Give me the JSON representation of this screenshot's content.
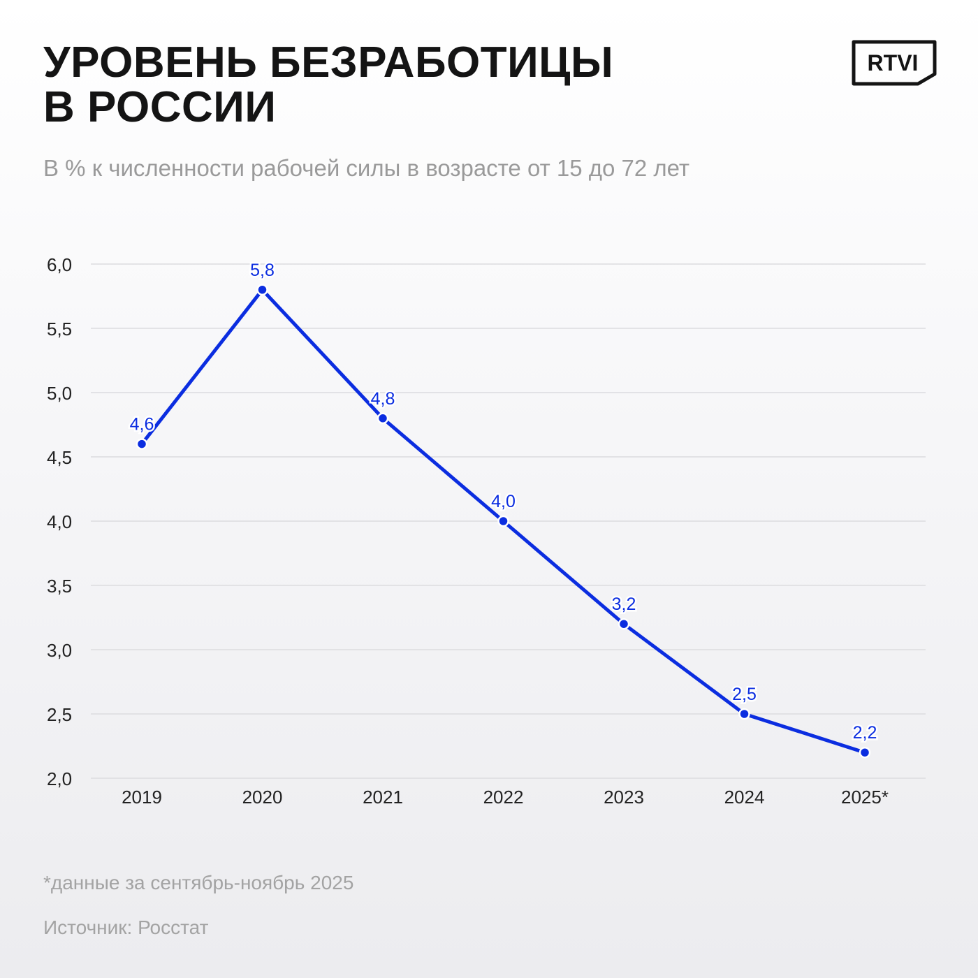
{
  "title": {
    "line1": "УРОВЕНЬ БЕЗРАБОТИЦЫ",
    "line2": "В РОССИИ"
  },
  "subtitle": "В % к численности рабочей силы в возрасте от 15 до 72 лет",
  "logo_text": "RTVI",
  "footnote": "*данные за сентябрь-ноябрь 2025",
  "source": "Источник: Росстат",
  "colors": {
    "line": "#0b2de0",
    "title": "#141414",
    "muted": "#9a9a9a",
    "grid": "#dcdcdf"
  },
  "chart_data": {
    "type": "line",
    "categories": [
      "2019",
      "2020",
      "2021",
      "2022",
      "2023",
      "2024",
      "2025*"
    ],
    "series": [
      {
        "values": [
          4.6,
          5.8,
          4.8,
          4.0,
          3.2,
          2.5,
          2.2
        ],
        "labels": [
          "4,6",
          "5,8",
          "4,8",
          "4,0",
          "3,2",
          "2,5",
          "2,2"
        ]
      }
    ],
    "ylim": [
      2.0,
      6.0
    ],
    "yticks": [
      2.0,
      2.5,
      3.0,
      3.5,
      4.0,
      4.5,
      5.0,
      5.5,
      6.0
    ],
    "ytick_labels": [
      "2,0",
      "2,5",
      "3,0",
      "3,5",
      "4,0",
      "4,5",
      "5,0",
      "5,5",
      "6,0"
    ],
    "grid": true,
    "legend": "none"
  }
}
